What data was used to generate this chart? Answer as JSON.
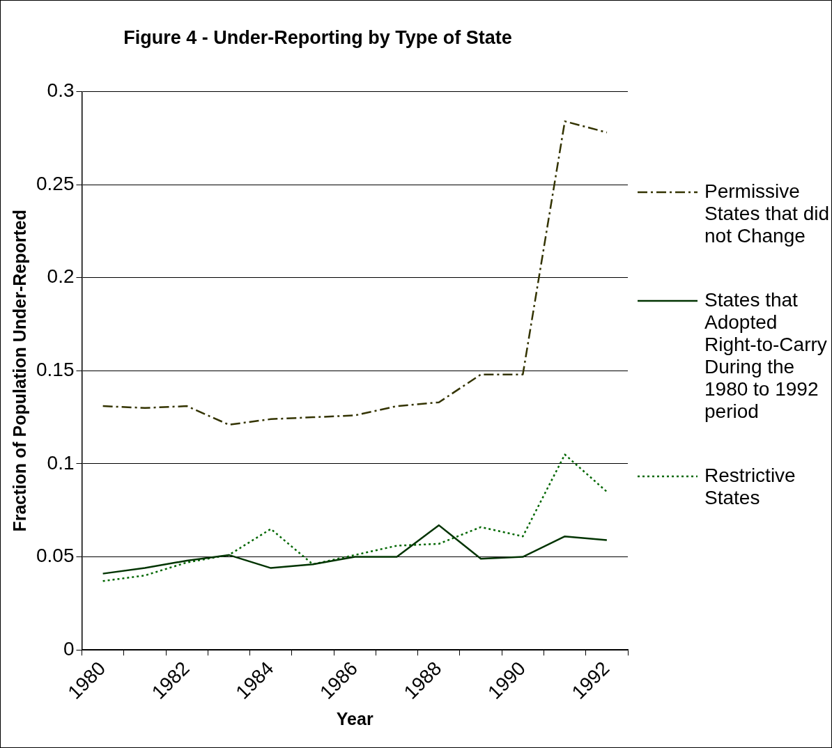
{
  "chart_data": {
    "type": "line",
    "title": "Figure 4 - Under-Reporting by Type of State",
    "xlabel": "Year",
    "ylabel": "Fraction of Population Under-Reported",
    "categories": [
      "1980",
      null,
      "1982",
      null,
      "1984",
      null,
      "1986",
      null,
      "1988",
      null,
      "1990",
      null,
      "1992"
    ],
    "ylim": [
      0,
      0.3
    ],
    "yticks": [
      0,
      0.05,
      0.1,
      0.15,
      0.2,
      0.25,
      0.3
    ],
    "grid": "y",
    "legend": "right",
    "marker": "none",
    "series": [
      {
        "name": "Permissive States that did not Change",
        "color": "#333300",
        "line_style": "dashed",
        "values": [
          0.131,
          0.13,
          0.131,
          0.121,
          0.124,
          0.125,
          0.126,
          0.131,
          0.133,
          0.148,
          0.148,
          0.284,
          0.278
        ]
      },
      {
        "name": "States that Adopted Right-to-Carry During the 1980 to 1992 period",
        "color": "#003300",
        "line_style": "solid",
        "values": [
          0.041,
          0.044,
          0.048,
          0.051,
          0.044,
          0.046,
          0.05,
          0.05,
          0.067,
          0.049,
          0.05,
          0.061,
          0.059
        ]
      },
      {
        "name": "Restrictive States",
        "color": "#006600",
        "line_style": "dotted",
        "values": [
          0.037,
          0.04,
          0.047,
          0.051,
          0.065,
          0.046,
          0.051,
          0.056,
          0.057,
          0.066,
          0.061,
          0.105,
          0.085
        ]
      }
    ]
  }
}
